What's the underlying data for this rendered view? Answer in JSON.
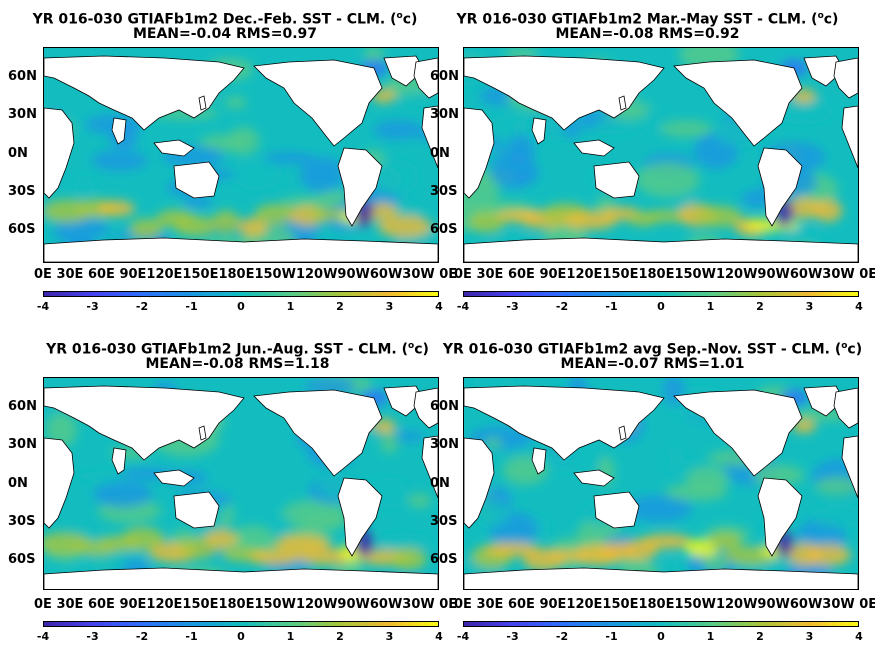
{
  "colorbar": {
    "ticks": [
      "-4",
      "-3",
      "-2",
      "-1",
      "0",
      "1",
      "2",
      "3",
      "4"
    ],
    "colors": [
      "#3e26a8",
      "#4743f0",
      "#2f6ffb",
      "#1c97e1",
      "#13bdbf",
      "#55cb8a",
      "#a6c63d",
      "#f0ba33",
      "#f9fb14"
    ]
  },
  "lat_labels": [
    "60N",
    "30N",
    "0N",
    "30S",
    "60S"
  ],
  "lon_labels": [
    "0E",
    "30E",
    "60E",
    "90E",
    "120E",
    "150E",
    "180E",
    "150W",
    "120W",
    "90W",
    "60W",
    "30W",
    "0E"
  ],
  "lon_axis_text": "0E  30E 60E 90E120E150E180E150W120W90W60W30W  0E",
  "panels": [
    {
      "id": "djf",
      "title": "YR 016-030 GTIAFb1m2  Dec.-Feb. SST - CLM. (",
      "unit": "o",
      "title_end": "c)",
      "stats": "MEAN=-0.04   RMS=0.97"
    },
    {
      "id": "mam",
      "title": "YR 016-030 GTIAFb1m2 Mar.-May SST - CLM. (",
      "unit": "o",
      "title_end": "c)",
      "stats": "MEAN=-0.08   RMS=0.92"
    },
    {
      "id": "jja",
      "title": "YR 016-030 GTIAFb1m2 Jun.-Aug. SST - CLM. (",
      "unit": "o",
      "title_end": "c)",
      "stats": "MEAN=-0.08   RMS=1.18"
    },
    {
      "id": "son",
      "title": "YR 016-030 GTIAFb1m2 avg Sep.-Nov. SST - CLM. (",
      "unit": "o",
      "title_end": "c)",
      "stats": "MEAN=-0.07   RMS=1.01"
    }
  ]
}
